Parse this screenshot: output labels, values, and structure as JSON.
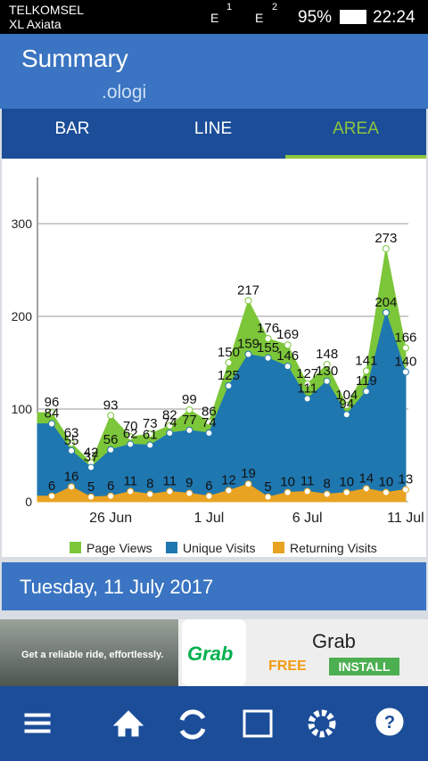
{
  "status_bar": {
    "carrier1": "TELKOMSEL",
    "carrier2": "XL Axiata",
    "net1": "E",
    "sim1": "1",
    "net2": "E",
    "sim2": "2",
    "battery": "95%",
    "time": "22:24"
  },
  "header": {
    "title": "Summary",
    "subtitle": ".ologi"
  },
  "tabs": [
    "BAR",
    "LINE",
    "AREA"
  ],
  "chart_data": {
    "type": "area",
    "categories": [
      null,
      null,
      null,
      "26 Jun",
      null,
      null,
      null,
      null,
      "1 Jul",
      null,
      null,
      null,
      null,
      "6 Jul",
      null,
      null,
      null,
      null,
      "11 Jul"
    ],
    "series": [
      {
        "name": "Page Views",
        "color": "#7cc63a",
        "values": [
          96,
          63,
          42,
          93,
          70,
          73,
          82,
          99,
          86,
          150,
          217,
          176,
          169,
          127,
          148,
          104,
          141,
          273,
          166
        ]
      },
      {
        "name": "Unique Visits",
        "color": "#1f77b0",
        "values": [
          84,
          55,
          37,
          56,
          62,
          61,
          74,
          77,
          74,
          125,
          159,
          155,
          146,
          111,
          130,
          94,
          119,
          204,
          140
        ]
      },
      {
        "name": "Returning Visits",
        "color": "#e8a322",
        "values": [
          6,
          16,
          5,
          6,
          11,
          8,
          11,
          9,
          6,
          12,
          19,
          5,
          10,
          11,
          8,
          10,
          14,
          10,
          13
        ]
      }
    ],
    "ylim": [
      0,
      350
    ],
    "yticks": [
      0,
      100,
      200,
      300
    ],
    "grid": true,
    "legend": "bottom"
  },
  "date_header": "Tuesday, 11 July 2017",
  "ad": {
    "tagline": "Get a reliable ride, effortlessly.",
    "logo": "Grab",
    "name": "Grab",
    "price": "FREE",
    "button": "INSTALL"
  }
}
